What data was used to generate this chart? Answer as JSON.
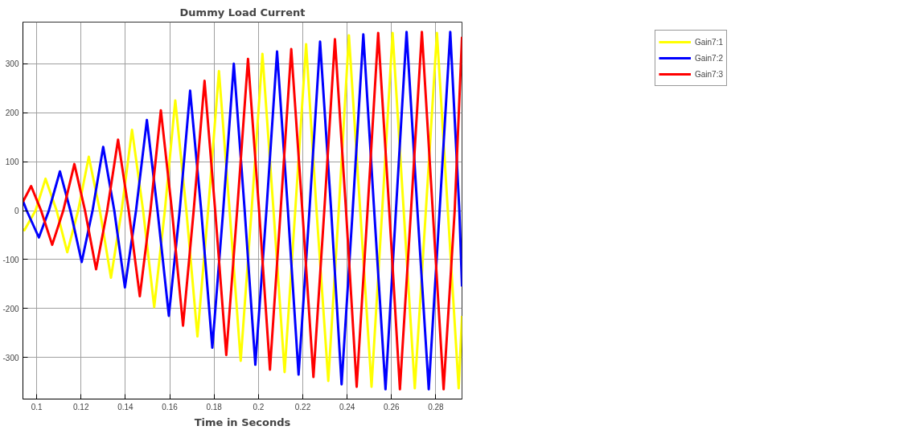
{
  "chart_data": {
    "type": "line",
    "title": "Dummy Load Current",
    "xlabel": "Time in Seconds",
    "xlim": [
      0.0938,
      0.2918
    ],
    "ylim": [
      -385,
      385
    ],
    "xticks": [
      0.1,
      0.12,
      0.14,
      0.16,
      0.18,
      0.2,
      0.22,
      0.24,
      0.26,
      0.28
    ],
    "yticks": [
      -300,
      -200,
      -100,
      0,
      100,
      200,
      300
    ],
    "grid": true,
    "legend": "top right",
    "marker": "none",
    "line_style": "solid",
    "series": [
      {
        "name": "Gain7:1",
        "color": "#ffff00",
        "x": [
          0.0938,
          0.0945,
          0.0995,
          0.104,
          0.109,
          0.1138,
          0.1187,
          0.1235,
          0.1285,
          0.1335,
          0.1383,
          0.143,
          0.148,
          0.153,
          0.1578,
          0.1625,
          0.1675,
          0.1725,
          0.1773,
          0.1822,
          0.187,
          0.192,
          0.1969,
          0.2018,
          0.2068,
          0.2118,
          0.2166,
          0.2215,
          0.2262,
          0.2315,
          0.2362,
          0.2408,
          0.2459,
          0.251,
          0.2558,
          0.2605,
          0.2655,
          0.2705,
          0.2755,
          0.2805,
          0.2854,
          0.2903,
          0.2918
        ],
        "values": [
          -38,
          -40,
          0,
          65,
          0,
          -85,
          0,
          110,
          0,
          -137,
          0,
          165,
          0,
          -197,
          0,
          225,
          0,
          -257,
          0,
          285,
          0,
          -307,
          0,
          320,
          0,
          -330,
          0,
          340,
          0,
          -348,
          0,
          358,
          0,
          -360,
          0,
          363,
          0,
          -363,
          0,
          363,
          0,
          -363,
          -215
        ]
      },
      {
        "name": "Gain7:2",
        "color": "#0000ff",
        "x": [
          0.0938,
          0.0955,
          0.101,
          0.1055,
          0.1105,
          0.1152,
          0.1203,
          0.1252,
          0.13,
          0.135,
          0.1398,
          0.1448,
          0.1497,
          0.1545,
          0.1596,
          0.1645,
          0.1692,
          0.1742,
          0.1792,
          0.1841,
          0.1889,
          0.1938,
          0.1986,
          0.2036,
          0.2084,
          0.2133,
          0.2181,
          0.223,
          0.2278,
          0.2328,
          0.2375,
          0.2425,
          0.2473,
          0.2522,
          0.2573,
          0.262,
          0.2668,
          0.2717,
          0.2768,
          0.2817,
          0.2865,
          0.2906,
          0.2918
        ],
        "values": [
          20,
          0,
          -55,
          0,
          80,
          0,
          -105,
          0,
          130,
          0,
          -157,
          0,
          185,
          0,
          -215,
          0,
          245,
          0,
          -280,
          0,
          300,
          0,
          -315,
          0,
          325,
          0,
          -335,
          0,
          345,
          0,
          -355,
          0,
          360,
          0,
          -365,
          0,
          365,
          0,
          -365,
          0,
          365,
          0,
          -155
        ]
      },
      {
        "name": "Gain7:3",
        "color": "#ff0000",
        "x": [
          0.0938,
          0.0975,
          0.102,
          0.107,
          0.112,
          0.117,
          0.1218,
          0.1268,
          0.1318,
          0.1367,
          0.1415,
          0.1465,
          0.1513,
          0.156,
          0.161,
          0.166,
          0.1708,
          0.1757,
          0.1805,
          0.1855,
          0.1904,
          0.1953,
          0.2003,
          0.2052,
          0.21,
          0.2148,
          0.2198,
          0.2248,
          0.2297,
          0.2345,
          0.2395,
          0.2443,
          0.2492,
          0.254,
          0.259,
          0.2638,
          0.2688,
          0.2737,
          0.2786,
          0.2835,
          0.2885,
          0.2918
        ],
        "values": [
          18,
          50,
          0,
          -70,
          0,
          95,
          0,
          -120,
          0,
          145,
          0,
          -175,
          0,
          205,
          0,
          -235,
          0,
          265,
          0,
          -295,
          0,
          310,
          0,
          -325,
          0,
          330,
          0,
          -340,
          0,
          350,
          0,
          -360,
          0,
          363,
          0,
          -365,
          0,
          365,
          0,
          -365,
          0,
          355
        ]
      }
    ]
  }
}
